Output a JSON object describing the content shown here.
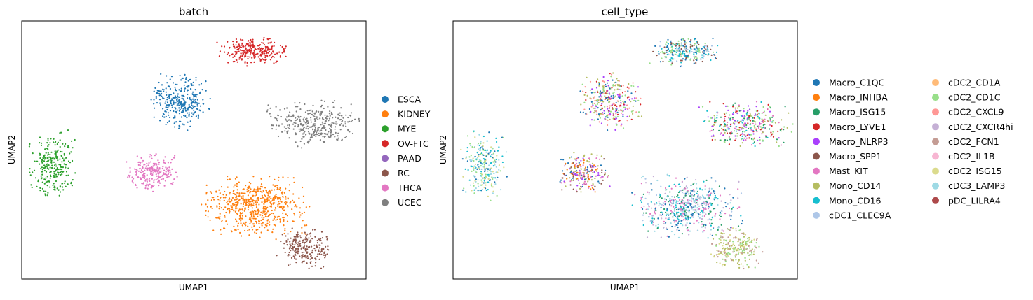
{
  "chart_data": [
    {
      "type": "scatter",
      "title": "batch",
      "xlabel": "UMAP1",
      "ylabel": "UMAP2",
      "legend_position": "right",
      "legend_columns": 1,
      "xticks": false,
      "yticks": false,
      "xlim": [
        0,
        100
      ],
      "ylim": [
        0,
        100
      ],
      "legend": [
        {
          "label": "ESCA",
          "color": "#1f77b4"
        },
        {
          "label": "KIDNEY",
          "color": "#ff7f0e"
        },
        {
          "label": "MYE",
          "color": "#2ca02c"
        },
        {
          "label": "OV-FTC",
          "color": "#d62728"
        },
        {
          "label": "PAAD",
          "color": "#9467bd"
        },
        {
          "label": "RC",
          "color": "#8c564b"
        },
        {
          "label": "THCA",
          "color": "#e377c2"
        },
        {
          "label": "UCEC",
          "color": "#7f7f7f"
        }
      ],
      "clusters": [
        {
          "group": "OV-FTC",
          "color": "#d62728",
          "cx": 67,
          "cy": 88,
          "rx": 9,
          "ry": 5,
          "points": 260
        },
        {
          "group": "ESCA",
          "color": "#1f77b4",
          "cx": 46,
          "cy": 69,
          "rx": 8,
          "ry": 10,
          "points": 320
        },
        {
          "group": "UCEC",
          "color": "#7f7f7f",
          "cx": 85,
          "cy": 60,
          "rx": 12,
          "ry": 8,
          "points": 340
        },
        {
          "group": "MYE",
          "color": "#2ca02c",
          "cx": 9,
          "cy": 44,
          "rx": 6,
          "ry": 12,
          "points": 260
        },
        {
          "group": "THCA",
          "color": "#e377c2",
          "cx": 38,
          "cy": 41,
          "rx": 7,
          "ry": 7,
          "points": 220
        },
        {
          "group": "KIDNEY",
          "color": "#ff7f0e",
          "cx": 68,
          "cy": 28,
          "rx": 14,
          "ry": 11,
          "points": 600
        },
        {
          "group": "RC",
          "color": "#8c564b",
          "cx": 82,
          "cy": 12,
          "rx": 7,
          "ry": 7,
          "points": 230
        }
      ]
    },
    {
      "type": "scatter",
      "title": "cell_type",
      "xlabel": "UMAP1",
      "ylabel": "UMAP2",
      "legend_position": "right",
      "legend_columns": 2,
      "xticks": false,
      "yticks": false,
      "xlim": [
        0,
        100
      ],
      "ylim": [
        0,
        100
      ],
      "legend": [
        {
          "label": "Macro_C1QC",
          "color": "#1f77b4"
        },
        {
          "label": "Macro_INHBA",
          "color": "#ff7f0e"
        },
        {
          "label": "Macro_ISG15",
          "color": "#279e68"
        },
        {
          "label": "Macro_LYVE1",
          "color": "#d62728"
        },
        {
          "label": "Macro_NLRP3",
          "color": "#aa40fc"
        },
        {
          "label": "Macro_SPP1",
          "color": "#8c564b"
        },
        {
          "label": "Mast_KIT",
          "color": "#e377c2"
        },
        {
          "label": "Mono_CD14",
          "color": "#b5bd61"
        },
        {
          "label": "Mono_CD16",
          "color": "#17becf"
        },
        {
          "label": "cDC1_CLEC9A",
          "color": "#aec7e8"
        },
        {
          "label": "cDC2_CD1A",
          "color": "#ffbb78"
        },
        {
          "label": "cDC2_CD1C",
          "color": "#98df8a"
        },
        {
          "label": "cDC2_CXCL9",
          "color": "#ff9896"
        },
        {
          "label": "cDC2_CXCR4hi",
          "color": "#c5b0d5"
        },
        {
          "label": "cDC2_FCN1",
          "color": "#c49c94"
        },
        {
          "label": "cDC2_IL1B",
          "color": "#f7b6d2"
        },
        {
          "label": "cDC2_ISG15",
          "color": "#dbdb8d"
        },
        {
          "label": "cDC3_LAMP3",
          "color": "#9edae5"
        },
        {
          "label": "pDC_LILRA4",
          "color": "#ad494a"
        }
      ],
      "clusters": [
        {
          "cx": 67,
          "cy": 88,
          "rx": 9,
          "ry": 5,
          "points": 260,
          "colors": [
            "#1f77b4",
            "#8c564b",
            "#17becf",
            "#98df8a",
            "#aec7e8"
          ]
        },
        {
          "cx": 46,
          "cy": 69,
          "rx": 8,
          "ry": 10,
          "points": 320,
          "colors": [
            "#d62728",
            "#aa40fc",
            "#98df8a",
            "#b5bd61",
            "#1f77b4",
            "#ff9896"
          ]
        },
        {
          "cx": 85,
          "cy": 60,
          "rx": 12,
          "ry": 8,
          "points": 340,
          "colors": [
            "#e377c2",
            "#b5bd61",
            "#17becf",
            "#aa40fc",
            "#98df8a",
            "#d62728",
            "#279e68"
          ]
        },
        {
          "cx": 9,
          "cy": 44,
          "rx": 6,
          "ry": 12,
          "points": 260,
          "colors": [
            "#9edae5",
            "#1f77b4",
            "#17becf",
            "#dbdb8d",
            "#98df8a"
          ]
        },
        {
          "cx": 38,
          "cy": 41,
          "rx": 7,
          "ry": 7,
          "points": 220,
          "colors": [
            "#ff7f0e",
            "#aa40fc",
            "#8c564b",
            "#1f77b4",
            "#b5bd61",
            "#e377c2"
          ]
        },
        {
          "cx": 68,
          "cy": 28,
          "rx": 14,
          "ry": 11,
          "points": 600,
          "colors": [
            "#17becf",
            "#e377c2",
            "#1f77b4",
            "#aec7e8",
            "#279e68",
            "#9edae5",
            "#c5b0d5"
          ]
        },
        {
          "cx": 82,
          "cy": 12,
          "rx": 7,
          "ry": 7,
          "points": 230,
          "colors": [
            "#dbdb8d",
            "#98df8a",
            "#c49c94",
            "#b5bd61"
          ]
        }
      ]
    }
  ]
}
